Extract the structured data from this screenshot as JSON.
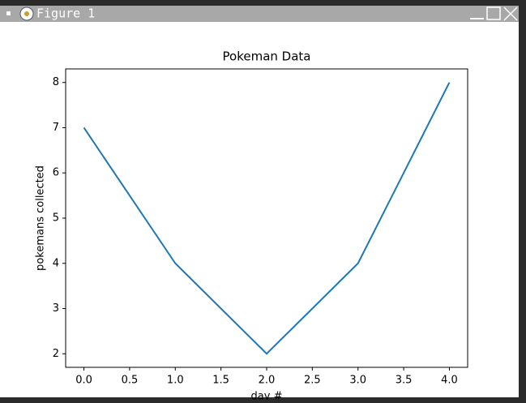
{
  "window": {
    "title": "Figure 1"
  },
  "chart_data": {
    "type": "line",
    "title": "Pokeman Data",
    "xlabel": "day #",
    "ylabel": "pokemans collected",
    "x": [
      0,
      1,
      2,
      3,
      4
    ],
    "series": [
      {
        "name": "pokemans collected",
        "color": "#1f77b4",
        "values": [
          7,
          4,
          2,
          4,
          8
        ]
      }
    ],
    "xlim": [
      -0.2,
      4.2
    ],
    "xticks": [
      {
        "value": 0,
        "label": "0.0"
      },
      {
        "value": 0.5,
        "label": "0.5"
      },
      {
        "value": 1,
        "label": "1.0"
      },
      {
        "value": 1.5,
        "label": "1.5"
      },
      {
        "value": 2,
        "label": "2.0"
      },
      {
        "value": 2.5,
        "label": "2.5"
      },
      {
        "value": 3,
        "label": "3.0"
      },
      {
        "value": 3.5,
        "label": "3.5"
      },
      {
        "value": 4,
        "label": "4.0"
      }
    ],
    "ylim": [
      1.7,
      8.3
    ],
    "yticks": [
      2,
      3,
      4,
      5,
      6,
      7,
      8
    ],
    "grid": false
  }
}
